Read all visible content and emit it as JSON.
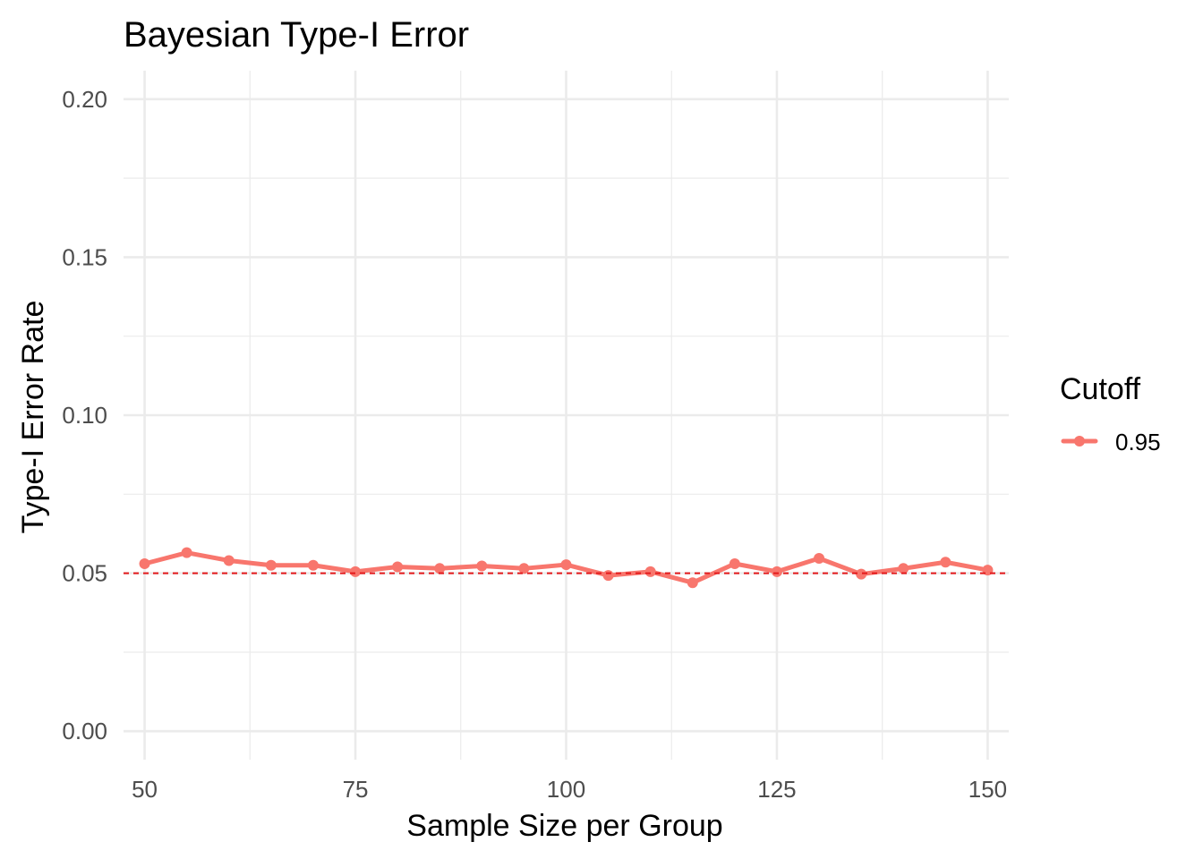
{
  "chart_data": {
    "type": "line",
    "title": "Bayesian Type-I Error",
    "xlabel": "Sample Size per Group",
    "ylabel": "Type-I Error Rate",
    "xlim": [
      47.5,
      152.5
    ],
    "ylim": [
      -0.009,
      0.209
    ],
    "x_ticks": [
      50,
      75,
      100,
      125,
      150
    ],
    "x_tick_labels": [
      "50",
      "75",
      "100",
      "125",
      "150"
    ],
    "y_ticks": [
      0.0,
      0.05,
      0.1,
      0.15,
      0.2
    ],
    "y_tick_labels": [
      "0.00",
      "0.05",
      "0.10",
      "0.15",
      "0.20"
    ],
    "grid": true,
    "legend": {
      "title": "Cutoff",
      "position": "right",
      "entries": [
        {
          "label": "0.95",
          "color": "#F8766D"
        }
      ]
    },
    "reference_line": {
      "y": 0.05,
      "style": "dashed",
      "color": "#E41A1C"
    },
    "series": [
      {
        "name": "0.95",
        "color": "#F8766D",
        "x": [
          50,
          55,
          60,
          65,
          70,
          75,
          80,
          85,
          90,
          95,
          100,
          105,
          110,
          115,
          120,
          125,
          130,
          135,
          140,
          145,
          150
        ],
        "values": [
          0.053,
          0.0565,
          0.054,
          0.0525,
          0.0525,
          0.0505,
          0.052,
          0.0515,
          0.0523,
          0.0515,
          0.0527,
          0.0493,
          0.0505,
          0.047,
          0.053,
          0.0505,
          0.0547,
          0.0497,
          0.0515,
          0.0535,
          0.051
        ]
      }
    ]
  }
}
